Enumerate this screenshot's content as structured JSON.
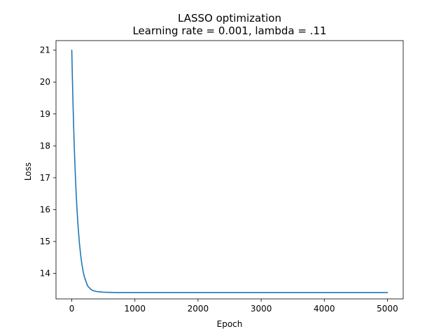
{
  "chart_data": {
    "type": "line",
    "title": "LASSO optimization",
    "subtitle": "Learning rate = 0.001, lambda = .11",
    "xlabel": "Epoch",
    "ylabel": "Loss",
    "xlim": [
      -250,
      5250
    ],
    "ylim": [
      13.2,
      21.3
    ],
    "xticks": [
      0,
      1000,
      2000,
      3000,
      4000,
      5000
    ],
    "xtick_labels": [
      "0",
      "1000",
      "2000",
      "3000",
      "4000",
      "5000"
    ],
    "yticks": [
      14,
      15,
      16,
      17,
      18,
      19,
      20,
      21
    ],
    "ytick_labels": [
      "14",
      "15",
      "16",
      "17",
      "18",
      "19",
      "20",
      "21"
    ],
    "grid": false,
    "legend": false,
    "colors": {
      "series": "#1f77b4",
      "axes": "#000000",
      "background": "#ffffff"
    },
    "series": [
      {
        "x": [
          0,
          10,
          20,
          30,
          40,
          50,
          60,
          70,
          80,
          90,
          100,
          120,
          140,
          160,
          180,
          200,
          250,
          300,
          350,
          400,
          450,
          500,
          600,
          700,
          800,
          900,
          1000,
          1200,
          1500,
          2000,
          2500,
          3000,
          3500,
          4000,
          4500,
          5000
        ],
        "y": [
          21.0,
          20.09,
          19.29,
          18.58,
          17.95,
          17.4,
          16.91,
          16.48,
          16.1,
          15.77,
          15.47,
          14.97,
          14.59,
          14.29,
          14.06,
          13.89,
          13.61,
          13.5,
          13.45,
          13.43,
          13.42,
          13.41,
          13.405,
          13.4,
          13.4,
          13.4,
          13.4,
          13.4,
          13.4,
          13.4,
          13.4,
          13.4,
          13.4,
          13.4,
          13.4,
          13.4
        ]
      }
    ]
  }
}
